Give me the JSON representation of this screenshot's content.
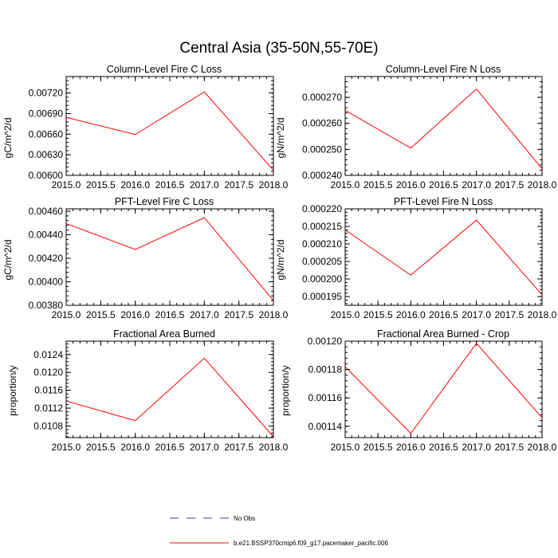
{
  "figure": {
    "title": "Central Asia (35-50N,55-70E)"
  },
  "legend": {
    "entries": [
      {
        "label": "No Obs",
        "color": "#3a3aa8",
        "style": "dashed"
      },
      {
        "label": "b.e21.BSSP370cmip6.f09_g17.pacemaker_pacific.006",
        "color": "#ff0000",
        "style": "solid"
      }
    ]
  },
  "chart_data": [
    {
      "type": "line",
      "title": "Column-Level Fire C Loss",
      "xlabel": "",
      "ylabel": "gC/m^2/d",
      "xlim": [
        2015.0,
        2018.0
      ],
      "ylim": [
        0.006,
        0.00744
      ],
      "xticks": [
        "2015.0",
        "2015.5",
        "2016.0",
        "2016.5",
        "2017.0",
        "2017.5",
        "2018.0"
      ],
      "yticks": [
        "0.00600",
        "0.00630",
        "0.00660",
        "0.00690",
        "0.00720"
      ],
      "series": [
        {
          "color": "#ff0000",
          "x": [
            2015,
            2016,
            2017,
            2018
          ],
          "y": [
            0.006845,
            0.006595,
            0.007215,
            0.006075
          ]
        }
      ]
    },
    {
      "type": "line",
      "title": "Column-Level Fire N Loss",
      "xlabel": "",
      "ylabel": "gN/m^2/d",
      "xlim": [
        2015.0,
        2018.0
      ],
      "ylim": [
        0.00024,
        0.000278
      ],
      "xticks": [
        "2015.0",
        "2015.5",
        "2016.0",
        "2016.5",
        "2017.0",
        "2017.5",
        "2018.0"
      ],
      "yticks": [
        "0.000240",
        "0.000250",
        "0.000260",
        "0.000270"
      ],
      "series": [
        {
          "color": "#ff0000",
          "x": [
            2015,
            2016,
            2017,
            2018
          ],
          "y": [
            0.000265,
            0.0002505,
            0.0002732,
            0.0002425
          ]
        }
      ]
    },
    {
      "type": "line",
      "title": "PFT-Level Fire C Loss",
      "xlabel": "",
      "ylabel": "gC/m^2/d",
      "xlim": [
        2015.0,
        2018.0
      ],
      "ylim": [
        0.0038,
        0.00462
      ],
      "xticks": [
        "2015.0",
        "2015.5",
        "2016.0",
        "2016.5",
        "2017.0",
        "2017.5",
        "2018.0"
      ],
      "yticks": [
        "0.00380",
        "0.00400",
        "0.00420",
        "0.00440",
        "0.00460"
      ],
      "series": [
        {
          "color": "#ff0000",
          "x": [
            2015,
            2016,
            2017,
            2018
          ],
          "y": [
            0.004495,
            0.004275,
            0.004545,
            0.00384
          ]
        }
      ]
    },
    {
      "type": "line",
      "title": "PFT-Level Fire N Loss",
      "xlabel": "",
      "ylabel": "gN/m^2/d",
      "xlim": [
        2015.0,
        2018.0
      ],
      "ylim": [
        0.0001925,
        0.00022
      ],
      "xticks": [
        "2015.0",
        "2015.5",
        "2016.0",
        "2016.5",
        "2017.0",
        "2017.5",
        "2018.0"
      ],
      "yticks": [
        "0.000195",
        "0.000200",
        "0.000205",
        "0.000210",
        "0.000215",
        "0.000220"
      ],
      "series": [
        {
          "color": "#ff0000",
          "x": [
            2015,
            2016,
            2017,
            2018
          ],
          "y": [
            0.000214,
            0.0002011,
            0.0002168,
            0.0001955
          ]
        }
      ]
    },
    {
      "type": "line",
      "title": "Fractional Area Burned",
      "xlabel": "",
      "ylabel": "proportion/y",
      "xlim": [
        2015.0,
        2018.0
      ],
      "ylim": [
        0.01054,
        0.0127
      ],
      "xticks": [
        "2015.0",
        "2015.5",
        "2016.0",
        "2016.5",
        "2017.0",
        "2017.5",
        "2018.0"
      ],
      "yticks": [
        "0.0108",
        "0.0112",
        "0.0116",
        "0.0120",
        "0.0124"
      ],
      "series": [
        {
          "color": "#ff0000",
          "x": [
            2015,
            2016,
            2017,
            2018
          ],
          "y": [
            0.01136,
            0.01092,
            0.01232,
            0.01056
          ]
        }
      ]
    },
    {
      "type": "line",
      "title": "Fractional Area Burned - Crop",
      "xlabel": "",
      "ylabel": "proportion/y",
      "xlim": [
        2015.0,
        2018.0
      ],
      "ylim": [
        0.001132,
        0.0012
      ],
      "xticks": [
        "2015.0",
        "2015.5",
        "2016.0",
        "2016.5",
        "2017.0",
        "2017.5",
        "2018.0"
      ],
      "yticks": [
        "0.00114",
        "0.00116",
        "0.00118",
        "0.00120"
      ],
      "series": [
        {
          "color": "#ff0000",
          "x": [
            2015,
            2016,
            2017,
            2018
          ],
          "y": [
            0.001182,
            0.001135,
            0.0011985,
            0.001146
          ]
        }
      ]
    }
  ]
}
